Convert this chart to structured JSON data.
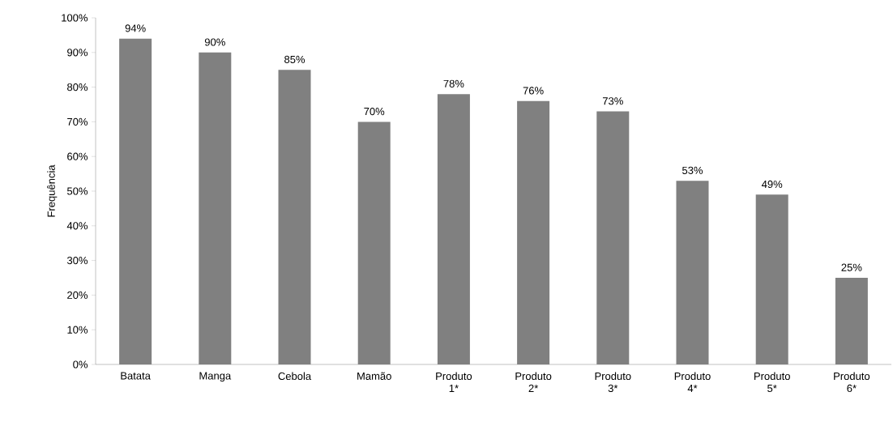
{
  "chart_data": {
    "type": "bar",
    "ylabel": "Frequência",
    "categories": [
      "Batata",
      "Manga",
      "Cebola",
      "Mamão",
      "Produto 1*",
      "Produto 2*",
      "Produto 3*",
      "Produto 4*",
      "Produto 5*",
      "Produto 6*"
    ],
    "values": [
      94,
      90,
      85,
      70,
      78,
      76,
      73,
      53,
      49,
      25
    ],
    "value_labels": [
      "94%",
      "90%",
      "85%",
      "70%",
      "78%",
      "76%",
      "73%",
      "53%",
      "49%",
      "25%"
    ],
    "color": "#808080",
    "ylim": [
      0,
      100
    ],
    "yticks": [
      {
        "value": 0,
        "label": "0%"
      },
      {
        "value": 10,
        "label": "10%"
      },
      {
        "value": 20,
        "label": "20%"
      },
      {
        "value": 30,
        "label": "30%"
      },
      {
        "value": 40,
        "label": "40%"
      },
      {
        "value": 50,
        "label": "50%"
      },
      {
        "value": 60,
        "label": "60%"
      },
      {
        "value": 70,
        "label": "70%"
      },
      {
        "value": 80,
        "label": "80%"
      },
      {
        "value": 90,
        "label": "90%"
      },
      {
        "value": 100,
        "label": "100%"
      }
    ]
  }
}
